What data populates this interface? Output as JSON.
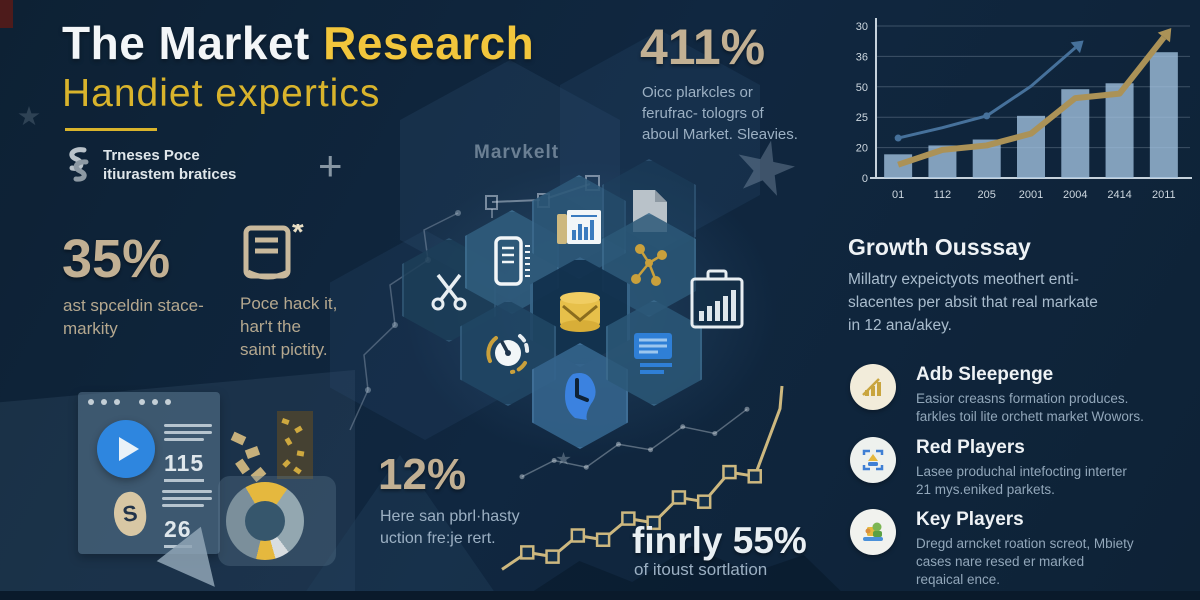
{
  "header": {
    "title_white": "The Market ",
    "title_accent": "Research",
    "subtitle": "Handiet expertics",
    "brand_line1": "Trneses Poce",
    "brand_line2": "itiurastem bratices",
    "plus_sign": "+",
    "watermark": "Marvkelt"
  },
  "stats": {
    "stat411": {
      "value": "411%",
      "lines": [
        "Oicc plarkcles or",
        "ferufrac- tologrs of",
        "aboul Market. Sleavies."
      ]
    },
    "stat35": {
      "value": "35%",
      "lines": [
        "ast spceldin stace-",
        "markity"
      ]
    },
    "note": {
      "lines": [
        "Poce hack it,",
        "har't the",
        "saint pictity."
      ]
    },
    "stat12": {
      "value": "12%",
      "lines": [
        "Here san pbrl·hasty",
        "uction fre:je rert."
      ]
    },
    "stat55": {
      "value": "finrly 55%",
      "caption": "of itoust sortlation"
    }
  },
  "growth": {
    "heading": "Growth Ousssay",
    "lines": [
      "Millatry expeictyots  meothert enti-",
      "slacentes per absit that real markate",
      "in 12 ana/akey."
    ]
  },
  "players": [
    {
      "icon": "bar-growth-icon",
      "title": "Adb Sleepenge",
      "lines": [
        "Easior creasns formation produces.",
        "farkles toil lite orchett market Wowors."
      ]
    },
    {
      "icon": "blue-box-icon",
      "title": "Red Players",
      "lines": [
        "Lasee produchal intefocting interter",
        "21 mys.eniked parkets."
      ]
    },
    {
      "icon": "workstation-icon",
      "title": "Key Players",
      "lines": [
        "Dregd arncket roation screot, Mbiety",
        "cases nare resed er marked",
        "reqaical ence."
      ]
    }
  ],
  "mockup": {
    "value1": "115",
    "value2": "26",
    "coin_letter": "S"
  },
  "colors": {
    "accent_yellow": "#f2c63c",
    "subtitle_gold": "#d9b42c",
    "stat_tan": "#c2b093",
    "body_blue_gray": "#9cb0c3",
    "bar_fill": "#a3c3e0",
    "gold_line": "#ab9257",
    "blue_line": "#46719b",
    "background_navy": "#102740"
  },
  "chart_data": [
    {
      "type": "bar",
      "name": "top-right combo chart",
      "categories": [
        "01",
        "112",
        "205",
        "2001",
        "2004",
        "2414",
        "2011"
      ],
      "y_tick_labels": [
        "30",
        "36",
        "50",
        "25",
        "20",
        "0"
      ],
      "series": [
        {
          "name": "bars",
          "type": "bar",
          "values": [
            16,
            22,
            26,
            42,
            60,
            64,
            85
          ]
        },
        {
          "name": "gold-trend-line",
          "type": "line",
          "values": [
            9,
            19,
            22,
            30,
            54,
            57,
            95
          ]
        },
        {
          "name": "blue-arrow-line",
          "type": "line",
          "values": [
            27,
            34,
            42,
            62,
            88
          ]
        }
      ],
      "ylim": [
        0,
        100
      ],
      "grid": true,
      "legend": false
    },
    {
      "type": "line",
      "name": "bottom-center step progression",
      "x": [
        0,
        1,
        2,
        3,
        4,
        5,
        6,
        7,
        8,
        9,
        10,
        11
      ],
      "y": [
        6,
        14,
        12,
        22,
        20,
        30,
        28,
        40,
        38,
        52,
        50,
        82
      ],
      "ymax": 88,
      "marker": "hollow-square",
      "background_series": {
        "x": [
          0,
          1,
          2,
          3,
          4,
          5,
          6,
          7
        ],
        "y": [
          38,
          50,
          45,
          62,
          58,
          75,
          70,
          88
        ]
      }
    },
    {
      "type": "pie",
      "name": "bottom-left donut",
      "segments": [
        {
          "color": "#e5b83e",
          "pct": 18
        },
        {
          "color": "#93a7b0",
          "pct": 30
        },
        {
          "color": "#d8dde0",
          "pct": 6
        },
        {
          "color": "#e5b83e",
          "pct": 8
        },
        {
          "color": "#7b8f9b",
          "pct": 38
        }
      ],
      "hole_color": "#36566c"
    }
  ]
}
